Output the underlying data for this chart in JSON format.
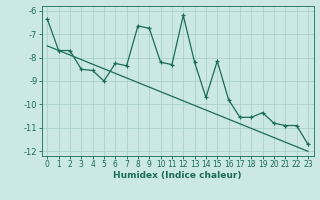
{
  "xlabel": "Humidex (Indice chaleur)",
  "ylabel": "",
  "background_color": "#cce8e4",
  "line_color": "#1a6b5a",
  "grid_color": "#a8ccc8",
  "xlim": [
    -0.5,
    23.5
  ],
  "ylim": [
    -12.2,
    -5.8
  ],
  "xticks": [
    0,
    1,
    2,
    3,
    4,
    5,
    6,
    7,
    8,
    9,
    10,
    11,
    12,
    13,
    14,
    15,
    16,
    17,
    18,
    19,
    20,
    21,
    22,
    23
  ],
  "yticks": [
    -12,
    -11,
    -10,
    -9,
    -8,
    -7,
    -6
  ],
  "zigzag_x": [
    0,
    1,
    2,
    3,
    4,
    5,
    6,
    7,
    8,
    9,
    10,
    11,
    12,
    13,
    14,
    15,
    16,
    17,
    18,
    19,
    20,
    21,
    22,
    23
  ],
  "zigzag_y": [
    -6.35,
    -7.7,
    -7.7,
    -8.5,
    -8.55,
    -9.0,
    -8.25,
    -8.35,
    -6.65,
    -6.75,
    -8.2,
    -8.3,
    -6.2,
    -8.2,
    -9.7,
    -8.15,
    -9.8,
    -10.55,
    -10.55,
    -10.35,
    -10.8,
    -10.9,
    -10.9,
    -11.7
  ],
  "trend_x": [
    0,
    23
  ],
  "trend_y": [
    -7.5,
    -12.0
  ],
  "marker_size": 3.5,
  "line_width": 0.9,
  "tick_fontsize": 5.5,
  "xlabel_fontsize": 6.5
}
